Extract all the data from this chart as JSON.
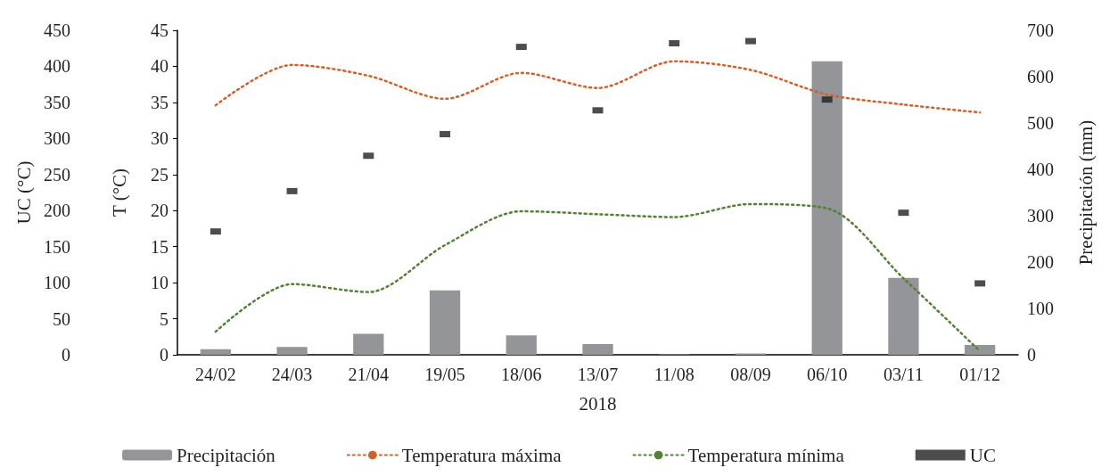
{
  "chart_data": {
    "type": "line",
    "xlabel": "2018",
    "ylabel": "T (°C)",
    "y2label": "Precipitación (mm)",
    "y3label": "UC (°C)",
    "categories": [
      "24/02",
      "24/03",
      "21/04",
      "19/05",
      "18/06",
      "13/07",
      "11/08",
      "08/09",
      "06/10",
      "03/11",
      "01/12"
    ],
    "series": [
      {
        "name": "Precipitación",
        "type": "bar",
        "axis": "y2",
        "color": "#939598",
        "values": [
          12,
          17,
          45,
          139,
          42,
          23,
          1,
          3,
          633,
          166,
          21
        ]
      },
      {
        "name": "Temperatura máxima",
        "axis": "y",
        "color": "#d2602a",
        "line_style": "dotted",
        "marker": "none",
        "values": [
          34.6,
          40.2,
          38.7,
          35.5,
          39.1,
          37.0,
          40.7,
          39.5,
          36.1,
          34.7,
          33.6
        ]
      },
      {
        "name": "Temperatura mínima",
        "axis": "y",
        "color": "#538135",
        "line_style": "dotted",
        "marker": "none",
        "values": [
          3.2,
          9.8,
          8.7,
          15.2,
          19.9,
          19.5,
          19.1,
          20.9,
          20.3,
          10.6,
          0.5
        ]
      },
      {
        "name": "UC",
        "type": "scatter",
        "axis": "y3",
        "marker": "square",
        "color": "#231f20",
        "values": [
          171,
          227,
          276,
          306,
          427,
          339,
          432,
          435,
          354,
          197,
          99
        ]
      }
    ],
    "ylim": [
      0,
      45
    ],
    "yticks": [
      0,
      5,
      10,
      15,
      20,
      25,
      30,
      35,
      40,
      45
    ],
    "y2lim": [
      0,
      700
    ],
    "y2ticks": [
      0,
      100,
      200,
      300,
      400,
      500,
      600,
      700
    ],
    "y3lim": [
      0,
      450
    ],
    "y3ticks": [
      0,
      50,
      100,
      150,
      200,
      250,
      300,
      350,
      400,
      450
    ],
    "grid": false,
    "legend": "bottom"
  }
}
